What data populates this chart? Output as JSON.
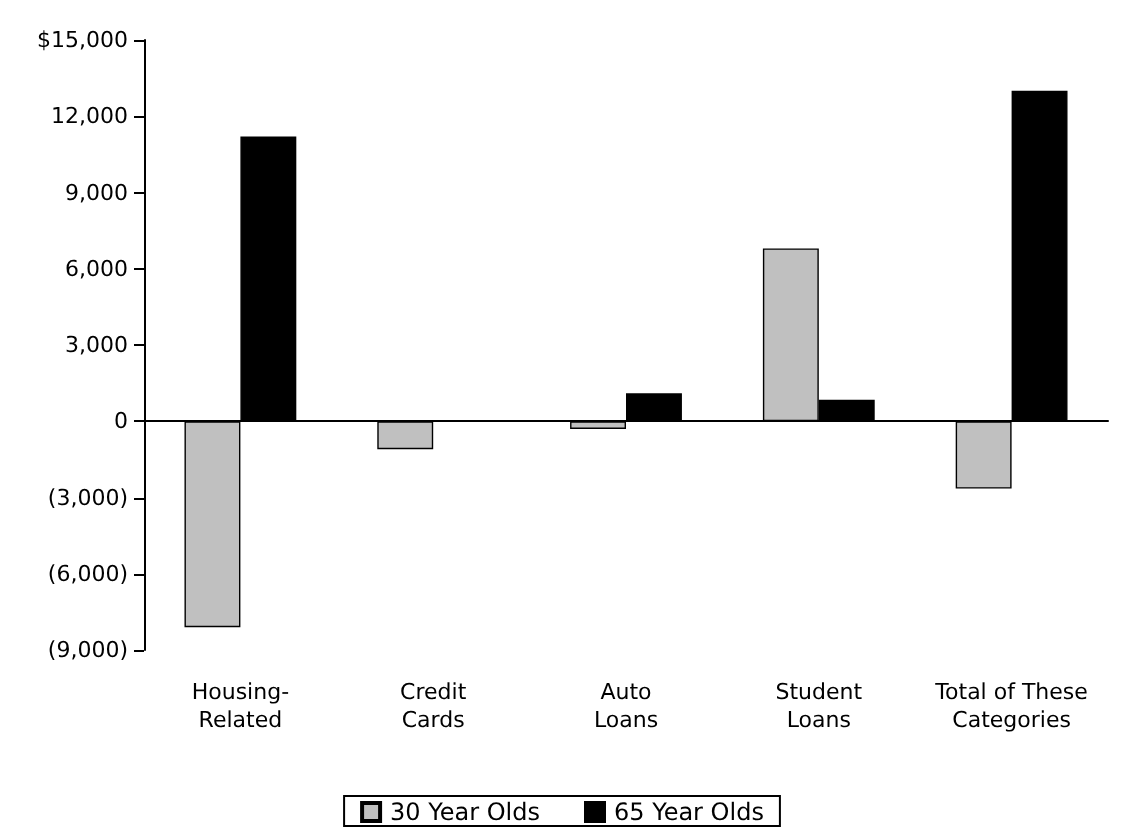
{
  "chart_data": {
    "type": "bar",
    "categories": [
      "Housing-\nRelated",
      "Credit\nCards",
      "Auto\nLoans",
      "Student\nLoans",
      "Total of These\nCategories"
    ],
    "series": [
      {
        "name": "30 Year Olds",
        "color": "#c0c0c0",
        "values": [
          -8100,
          -1100,
          -300,
          6800,
          -2650
        ]
      },
      {
        "name": "65 Year Olds",
        "color": "#000000",
        "values": [
          11200,
          null,
          1100,
          850,
          13000
        ]
      }
    ],
    "ylim": [
      -9000,
      15000
    ],
    "yticks": [
      {
        "value": -9000,
        "label": "(9,000)"
      },
      {
        "value": -6000,
        "label": "(6,000)"
      },
      {
        "value": -3000,
        "label": "(3,000)"
      },
      0,
      {
        "value": 3000,
        "label": "3,000"
      },
      {
        "value": 6000,
        "label": "6,000"
      },
      {
        "value": 9000,
        "label": "9,000"
      },
      {
        "value": 12000,
        "label": "12,000"
      },
      {
        "value": 15000,
        "label": "$15,000"
      }
    ],
    "legend": "bottom"
  }
}
